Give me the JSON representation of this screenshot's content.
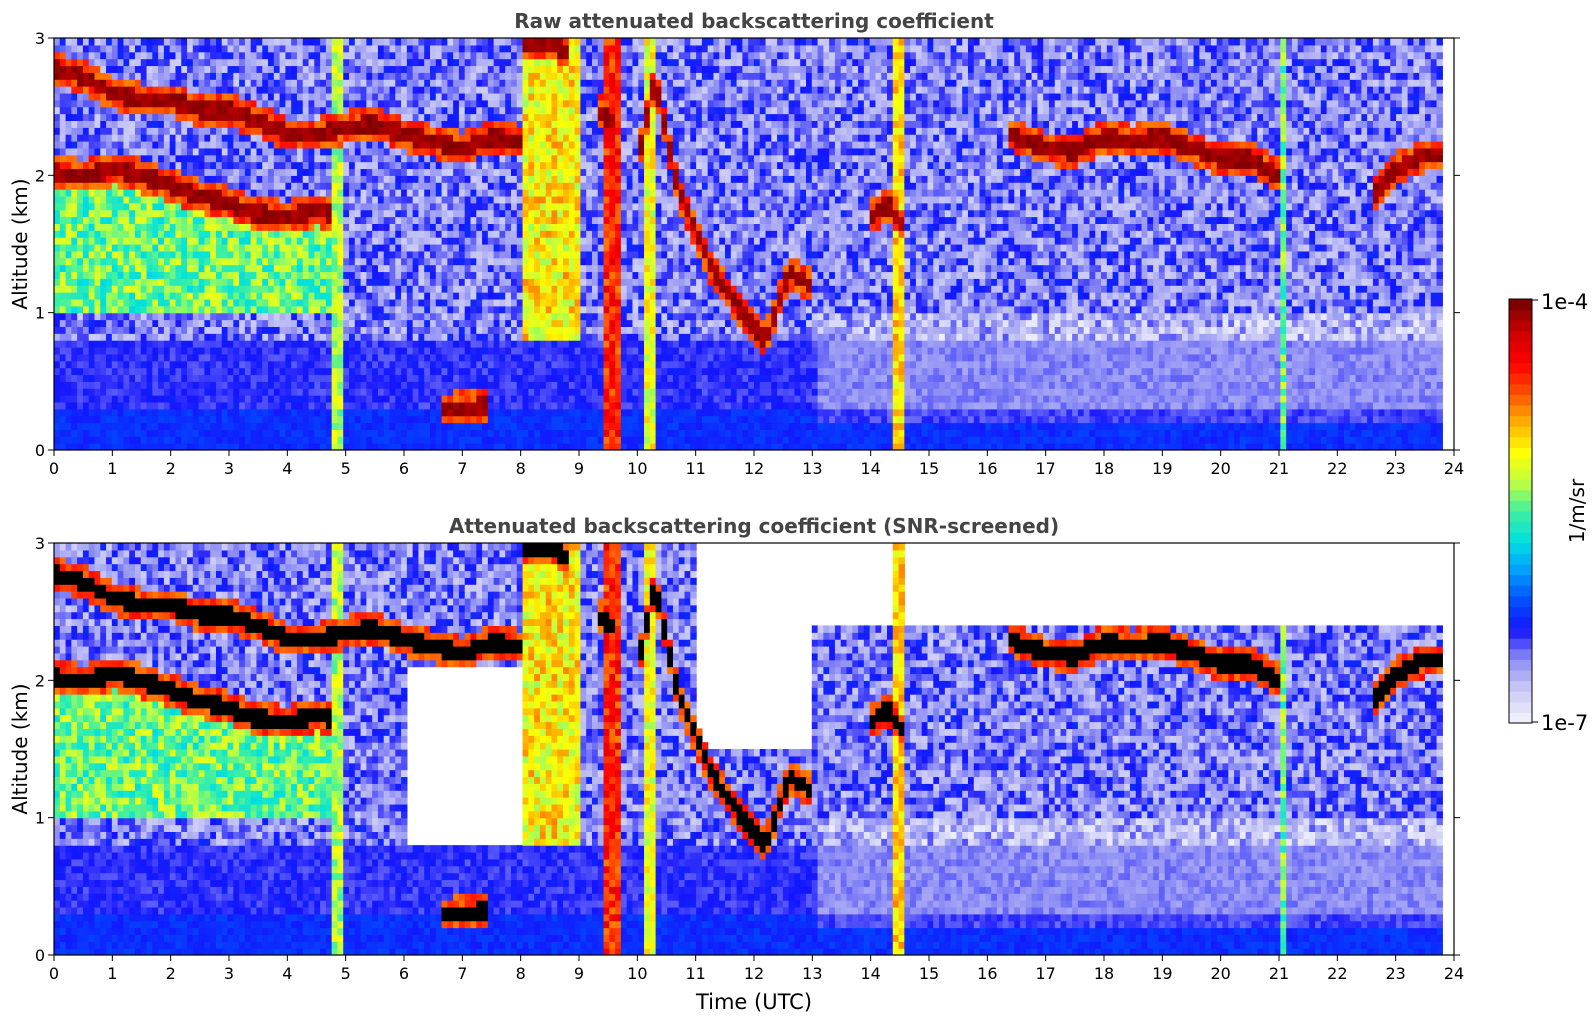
{
  "chart_data": [
    {
      "type": "heatmap",
      "title": "Raw attenuated backscattering coefficient",
      "xlabel": "",
      "ylabel": "Altitude (km)",
      "xlim": [
        0,
        24
      ],
      "ylim": [
        0,
        3
      ],
      "x_ticks": [
        "0",
        "1",
        "2",
        "3",
        "4",
        "5",
        "6",
        "7",
        "8",
        "9",
        "10",
        "11",
        "12",
        "13",
        "14",
        "15",
        "16",
        "17",
        "18",
        "19",
        "20",
        "21",
        "22",
        "23",
        "24"
      ],
      "y_ticks": [
        "0",
        "1",
        "2",
        "3"
      ],
      "data_end_time": 23.8,
      "color_scale": "log",
      "layers": [
        {
          "feature": "cloud base",
          "points": [
            [
              0.0,
              2.78
            ],
            [
              0.5,
              2.72
            ],
            [
              1.0,
              2.6
            ],
            [
              1.5,
              2.55
            ],
            [
              2.0,
              2.55
            ],
            [
              2.5,
              2.48
            ],
            [
              3.0,
              2.48
            ],
            [
              3.5,
              2.4
            ],
            [
              4.0,
              2.3
            ],
            [
              4.5,
              2.3
            ],
            [
              5.0,
              2.35
            ],
            [
              5.5,
              2.38
            ],
            [
              6.0,
              2.3
            ],
            [
              6.5,
              2.25
            ],
            [
              7.0,
              2.2
            ],
            [
              7.5,
              2.28
            ],
            [
              8.0,
              2.25
            ]
          ]
        },
        {
          "feature": "cloud base",
          "points": [
            [
              0.0,
              2.02
            ],
            [
              0.5,
              2.0
            ],
            [
              1.0,
              2.05
            ],
            [
              1.5,
              2.0
            ],
            [
              2.0,
              1.93
            ],
            [
              2.5,
              1.85
            ],
            [
              3.0,
              1.8
            ],
            [
              3.5,
              1.72
            ],
            [
              4.0,
              1.7
            ],
            [
              4.5,
              1.75
            ],
            [
              4.8,
              1.72
            ]
          ]
        },
        {
          "feature": "cloud base",
          "points": [
            [
              8.0,
              2.95
            ],
            [
              8.5,
              2.97
            ],
            [
              8.8,
              2.9
            ]
          ]
        },
        {
          "feature": "cloud base",
          "points": [
            [
              9.3,
              2.48
            ],
            [
              9.6,
              2.4
            ]
          ]
        },
        {
          "feature": "cloud base",
          "points": [
            [
              10.0,
              2.1
            ],
            [
              10.3,
              2.7
            ],
            [
              10.7,
              1.9
            ],
            [
              11.0,
              1.6
            ],
            [
              11.3,
              1.3
            ],
            [
              11.8,
              1.0
            ],
            [
              12.2,
              0.8
            ],
            [
              12.6,
              1.3
            ],
            [
              13.0,
              1.2
            ]
          ]
        },
        {
          "feature": "cloud base",
          "points": [
            [
              14.0,
              1.7
            ],
            [
              14.3,
              1.8
            ],
            [
              14.6,
              1.6
            ]
          ]
        },
        {
          "feature": "cloud base",
          "points": [
            [
              16.4,
              2.3
            ],
            [
              17.0,
              2.2
            ],
            [
              17.5,
              2.18
            ],
            [
              18.0,
              2.28
            ],
            [
              18.5,
              2.25
            ],
            [
              19.0,
              2.28
            ],
            [
              19.5,
              2.2
            ],
            [
              20.0,
              2.12
            ],
            [
              20.5,
              2.13
            ],
            [
              21.0,
              2.0
            ]
          ]
        },
        {
          "feature": "cloud base",
          "points": [
            [
              22.6,
              1.85
            ],
            [
              23.0,
              2.05
            ],
            [
              23.5,
              2.15
            ],
            [
              23.8,
              2.15
            ]
          ]
        },
        {
          "feature": "low cloud",
          "points": [
            [
              6.6,
              0.3
            ],
            [
              7.4,
              0.32
            ]
          ]
        }
      ]
    },
    {
      "type": "heatmap",
      "title": "Attenuated backscattering coefficient (SNR-screened)",
      "xlabel": "Time (UTC)",
      "ylabel": "Altitude (km)",
      "xlim": [
        0,
        24
      ],
      "ylim": [
        0,
        3
      ],
      "x_ticks": [
        "0",
        "1",
        "2",
        "3",
        "4",
        "5",
        "6",
        "7",
        "8",
        "9",
        "10",
        "11",
        "12",
        "13",
        "14",
        "15",
        "16",
        "17",
        "18",
        "19",
        "20",
        "21",
        "22",
        "23",
        "24"
      ],
      "y_ticks": [
        "0",
        "1",
        "2",
        "3"
      ],
      "data_end_time": 23.8,
      "color_scale": "log",
      "screened_out_regions": [
        {
          "t_start": 6.0,
          "t_end": 8.0,
          "alt_min": 0.8,
          "alt_max": 2.1
        },
        {
          "t_start": 11.0,
          "t_end": 13.0,
          "alt_min": 1.5,
          "alt_max": 3.0
        },
        {
          "t_start": 13.0,
          "t_end": 24.0,
          "alt_min": 2.4,
          "alt_max": 3.0
        }
      ]
    }
  ],
  "colorbar": {
    "label": "1/m/sr",
    "max_label": "1e-4",
    "min_label": "1e-7",
    "scale": "log",
    "stops": [
      "#eeeeff",
      "#c8c8f5",
      "#8c8cf5",
      "#1414ff",
      "#0050ff",
      "#00a0ff",
      "#00e0e0",
      "#40f0a0",
      "#c0ff40",
      "#ffff00",
      "#ffb000",
      "#ff5000",
      "#ff0000",
      "#d00000",
      "#800000"
    ]
  },
  "colors": {
    "title_text": "#444444",
    "cloud_core": "#8b0000",
    "cloud_core_screened": "#000000",
    "background_noise": "#1428f0",
    "screened_blank": "#ffffff"
  }
}
